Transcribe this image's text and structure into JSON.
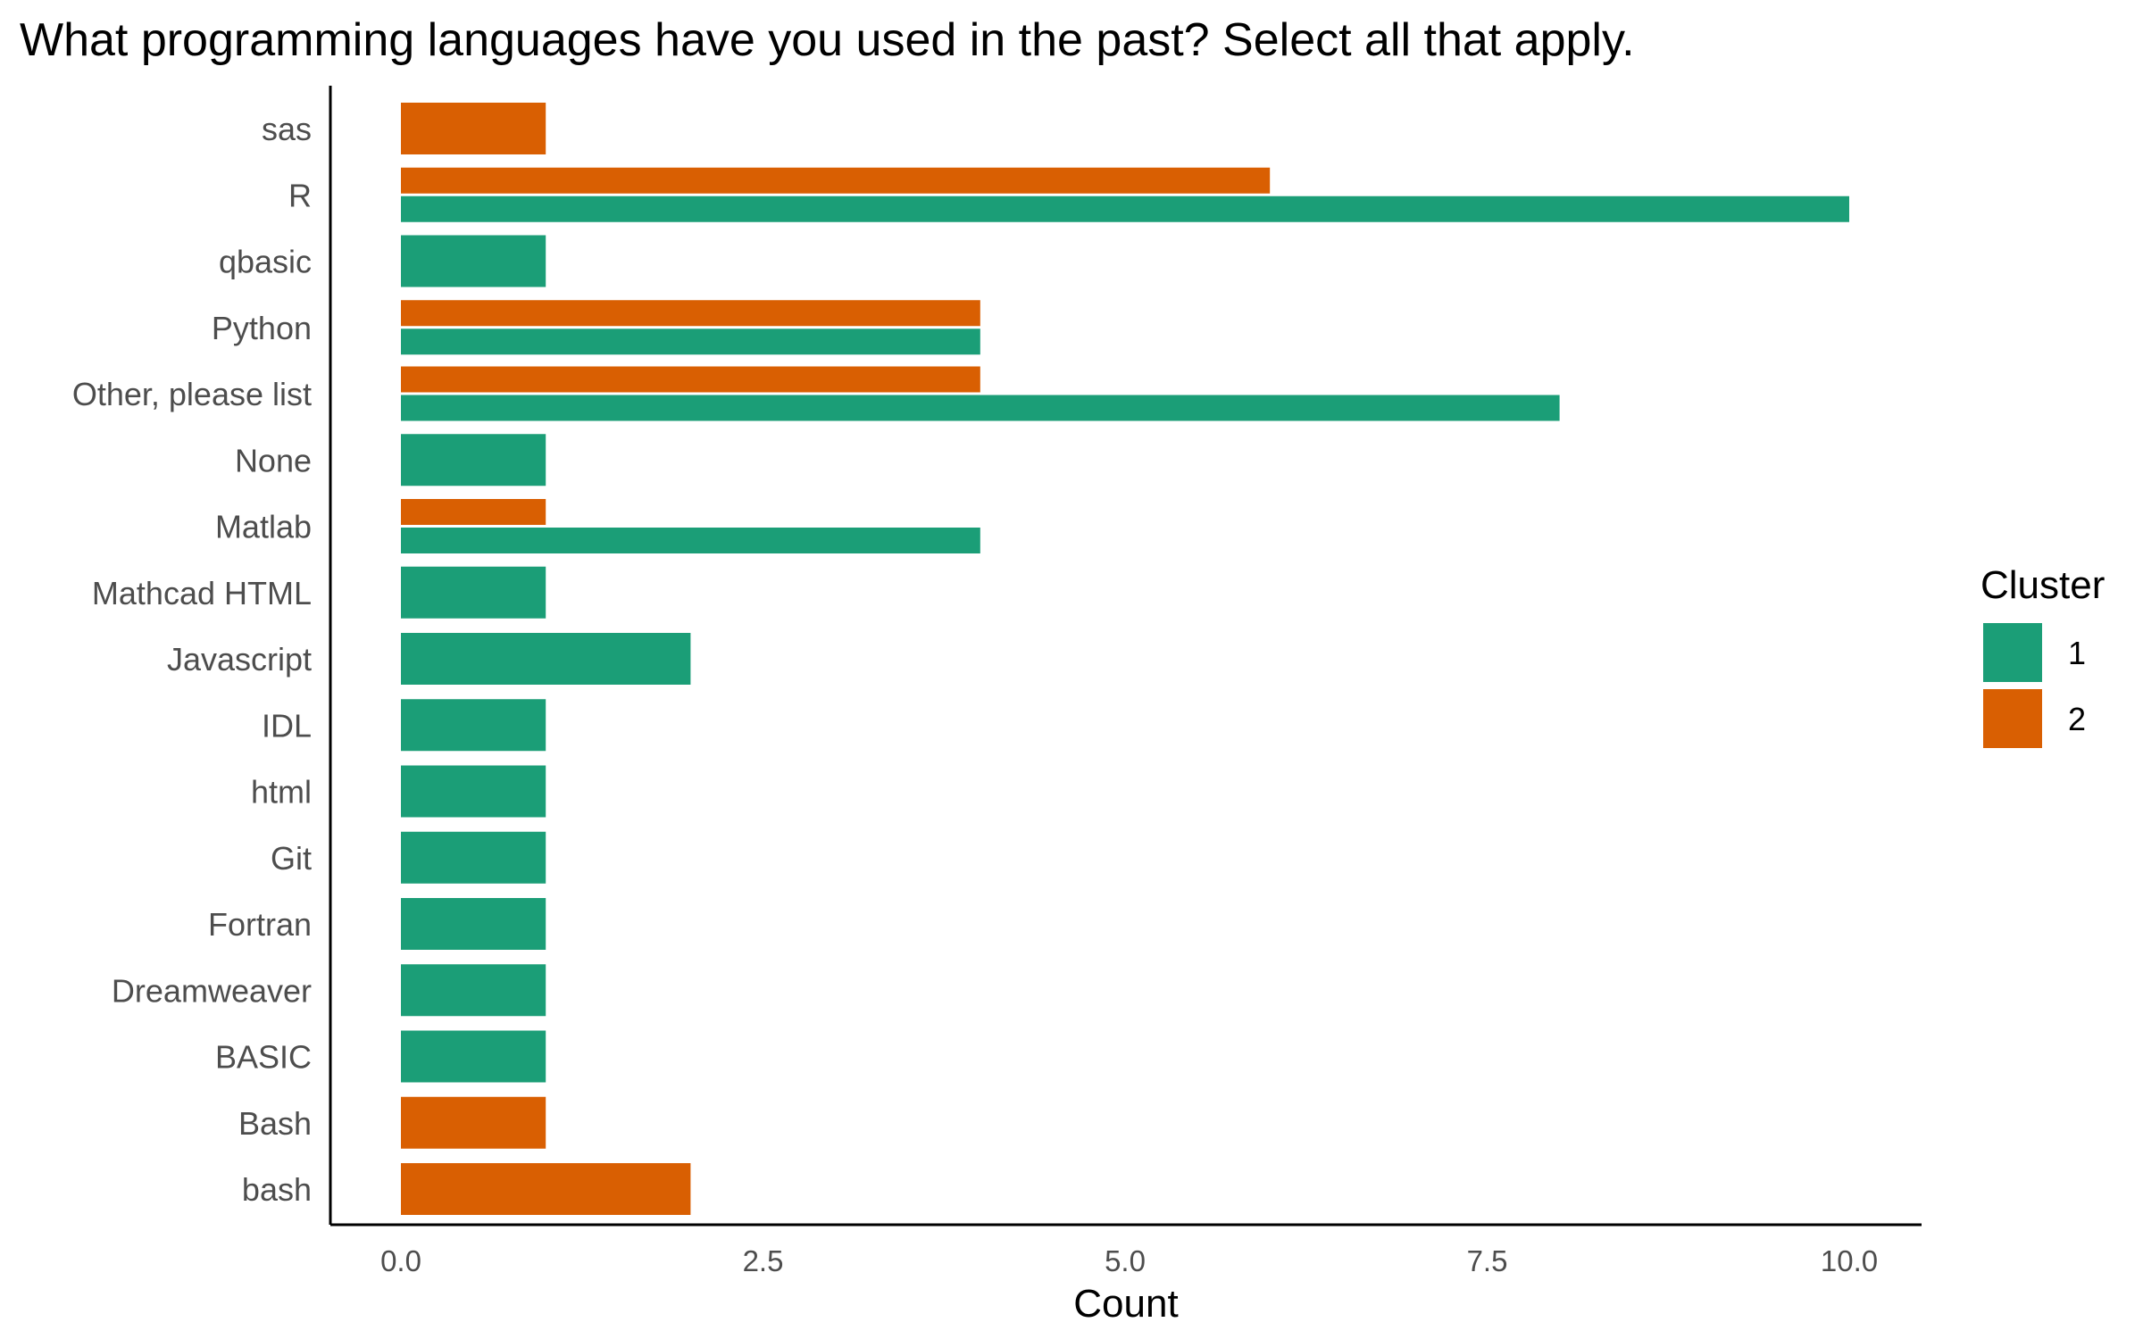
{
  "chart_data": {
    "type": "bar",
    "orientation": "horizontal",
    "title": "What programming languages have you used in the past? Select all that apply.",
    "xlabel": "Count",
    "ylabel": "",
    "xlim": [
      0,
      10
    ],
    "x_ticks": [
      "0.0",
      "2.5",
      "5.0",
      "7.5",
      "10.0"
    ],
    "x_tick_values": [
      0,
      2.5,
      5,
      7.5,
      10
    ],
    "grid": false,
    "legend_position": "right",
    "legend_title": "Cluster",
    "categories": [
      "sas",
      "R",
      "qbasic",
      "Python",
      "Other, please list",
      "None",
      "Matlab",
      "Mathcad HTML",
      "Javascript",
      "IDL",
      "html",
      "Git",
      "Fortran",
      "Dreamweaver",
      "BASIC",
      "Bash",
      "bash"
    ],
    "series": [
      {
        "name": "1",
        "color": "#1b9e77",
        "values": [
          null,
          10,
          1,
          4,
          8,
          1,
          4,
          1,
          2,
          1,
          1,
          1,
          1,
          1,
          1,
          null,
          null
        ]
      },
      {
        "name": "2",
        "color": "#d95f02",
        "values": [
          1,
          6,
          null,
          4,
          4,
          null,
          1,
          null,
          null,
          null,
          null,
          null,
          null,
          null,
          null,
          1,
          2
        ]
      }
    ]
  }
}
